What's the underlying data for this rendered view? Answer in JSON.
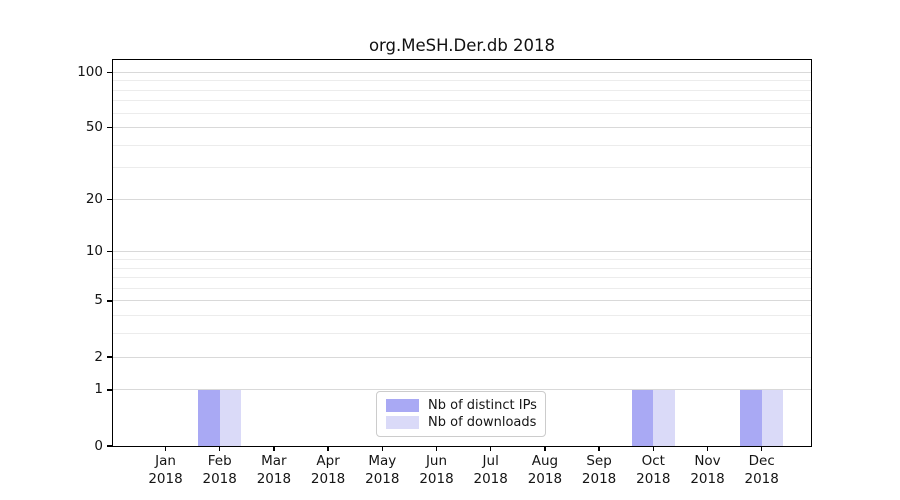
{
  "chart_data": {
    "type": "bar",
    "title": "org.MeSH.Der.db 2018",
    "x_tick_year": "2018",
    "categories": [
      "Jan",
      "Feb",
      "Mar",
      "Apr",
      "May",
      "Jun",
      "Jul",
      "Aug",
      "Sep",
      "Oct",
      "Nov",
      "Dec"
    ],
    "series": [
      {
        "name": "Nb of distinct IPs",
        "color": "#a9a9f4",
        "values": [
          0,
          1,
          0,
          0,
          0,
          0,
          0,
          0,
          0,
          1,
          0,
          1
        ]
      },
      {
        "name": "Nb of downloads",
        "color": "#dadaf8",
        "values": [
          0,
          1,
          0,
          0,
          0,
          0,
          0,
          0,
          0,
          1,
          0,
          1
        ]
      }
    ],
    "y_scale": "log1p",
    "y_major_ticks": [
      100,
      50,
      20,
      10,
      5,
      2,
      1,
      0
    ],
    "y_minor_gridlines": [
      3,
      4,
      6,
      7,
      8,
      9,
      30,
      40,
      60,
      70,
      80,
      90
    ],
    "ylim": [
      0,
      115
    ],
    "grid": "horizontal",
    "legend_position": "lower center"
  },
  "colors": {
    "background": "#ffffff",
    "axis": "#000000",
    "major_grid": "#d9d9d9",
    "minor_grid": "#ececec",
    "text": "#151515"
  }
}
